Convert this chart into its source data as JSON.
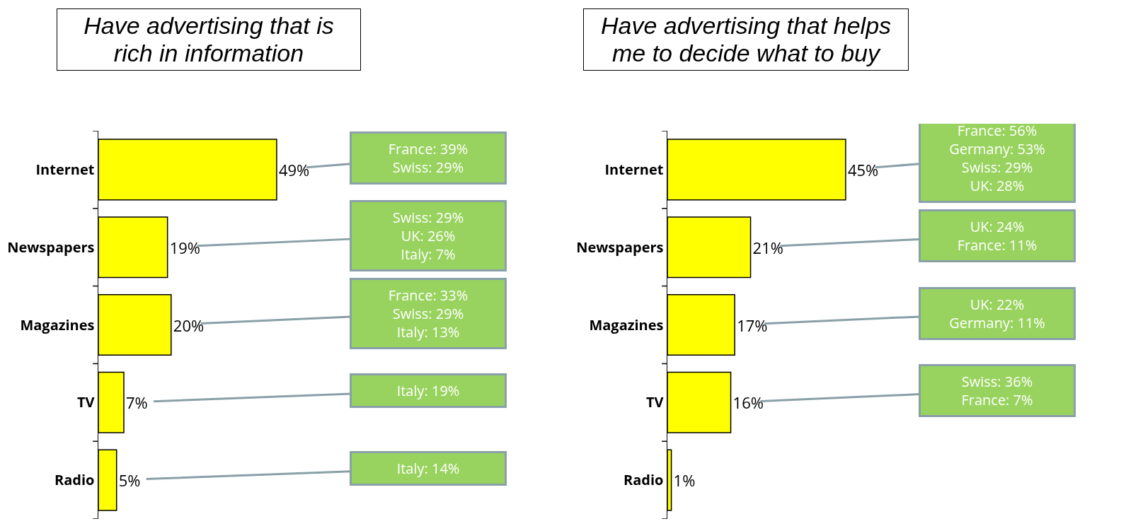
{
  "chart_data": [
    {
      "type": "bar",
      "orientation": "horizontal",
      "title": "Have advertising that is rich in information",
      "categories": [
        "Internet",
        "Newspapers",
        "Magazines",
        "TV",
        "Radio"
      ],
      "values": [
        49,
        19,
        20,
        7,
        5
      ],
      "value_labels": [
        "49%",
        "19%",
        "20%",
        "7%",
        "5%"
      ],
      "color": "#ffff00",
      "grid": false,
      "tick_labels": "y",
      "annotations": [
        "France: 39%\nSwiss: 29%",
        "Swiss: 29%\nUK: 26%\nItaly: 7%",
        "France: 33%\nSwiss: 29%\nItaly: 13%",
        "Italy: 19%",
        "Italy: 14%"
      ]
    },
    {
      "type": "bar",
      "orientation": "horizontal",
      "title": "Have advertising that helps me to decide what to buy",
      "categories": [
        "Internet",
        "Newspapers",
        "Magazines",
        "TV",
        "Radio"
      ],
      "values": [
        45,
        21,
        17,
        16,
        1
      ],
      "value_labels": [
        "45%",
        "21%",
        "17%",
        "16%",
        "1%"
      ],
      "color": "#ffff00",
      "grid": false,
      "tick_labels": "y",
      "annotations": [
        "France: 56%\nGermany: 53%\nSwiss: 29%\nUK: 28%",
        "UK: 24%\nFrance: 11%",
        "UK: 22%\nGermany: 11%",
        "Swiss: 36%\nFrance: 7%"
      ]
    }
  ]
}
